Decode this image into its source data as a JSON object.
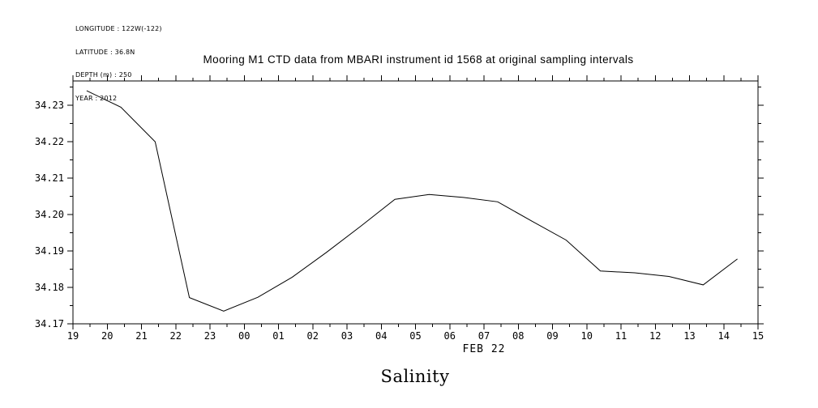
{
  "metadata": {
    "longitude": "LONGITUDE : 122W(-122)",
    "latitude": "LATITUDE : 36.8N",
    "depth": "DEPTH (m) : 250",
    "year": "YEAR : 2012"
  },
  "chart_data": {
    "type": "line",
    "title": "Mooring M1 CTD data from MBARI instrument id 1568 at original sampling intervals",
    "xlabel": "FEB 22",
    "ylabel": "Salinity",
    "line_color": "#000000",
    "grid": false,
    "legend": false,
    "xlim": [
      19,
      39
    ],
    "ylim": [
      34.17,
      34.2367
    ],
    "x_ticks": [
      "19",
      "20",
      "21",
      "22",
      "23",
      "00",
      "01",
      "02",
      "03",
      "04",
      "05",
      "06",
      "07",
      "08",
      "09",
      "10",
      "11",
      "12",
      "13",
      "14",
      "15"
    ],
    "y_ticks": [
      34.17,
      34.18,
      34.19,
      34.2,
      34.21,
      34.22,
      34.23
    ],
    "y_tick_labels": [
      "34.17",
      "34.18",
      "34.19",
      "34.20",
      "34.21",
      "34.22",
      "34.23"
    ],
    "x_hours": [
      19.4,
      20.4,
      21.4,
      22.4,
      23.4,
      24.4,
      25.4,
      26.4,
      27.4,
      28.4,
      29.4,
      30.4,
      31.4,
      32.4,
      33.4,
      34.4,
      35.4,
      36.4,
      37.4,
      38.4
    ],
    "salinity": [
      34.234,
      34.2295,
      34.22,
      34.1772,
      34.1735,
      34.1773,
      34.1828,
      34.1896,
      34.1968,
      34.2042,
      34.2055,
      34.2047,
      34.2035,
      34.1982,
      34.193,
      34.1845,
      34.184,
      34.183,
      34.1807,
      34.1878
    ]
  }
}
